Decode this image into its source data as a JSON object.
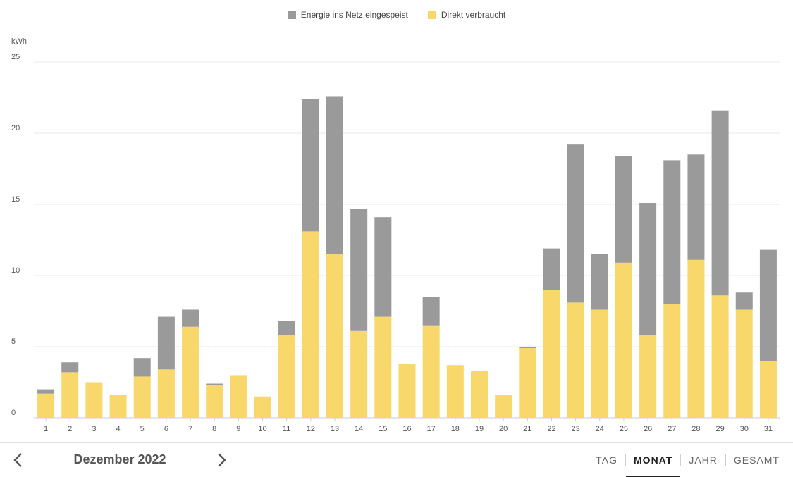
{
  "colors": {
    "fed_in": "#9a9a9a",
    "direct": "#f8d86a",
    "grid": "#e8e8e8",
    "axis_text": "#555555"
  },
  "chart_data": {
    "type": "bar",
    "stacked": true,
    "ylabel": "kWh",
    "ylim": [
      0,
      25
    ],
    "yticks": [
      0,
      5,
      10,
      15,
      20,
      25
    ],
    "grid": true,
    "legend_position": "top-center",
    "categories": [
      "1",
      "2",
      "3",
      "4",
      "5",
      "6",
      "7",
      "8",
      "9",
      "10",
      "11",
      "12",
      "13",
      "14",
      "15",
      "16",
      "17",
      "18",
      "19",
      "20",
      "21",
      "22",
      "23",
      "24",
      "25",
      "26",
      "27",
      "28",
      "29",
      "30",
      "31"
    ],
    "series": [
      {
        "name": "Direkt verbraucht",
        "color": "#f8d86a",
        "values": [
          1.7,
          3.2,
          2.5,
          1.6,
          2.9,
          3.4,
          6.4,
          2.3,
          3.0,
          1.5,
          5.8,
          13.1,
          11.5,
          6.1,
          7.1,
          3.8,
          6.5,
          3.7,
          3.3,
          1.6,
          4.9,
          9.0,
          8.1,
          7.6,
          10.9,
          5.8,
          8.0,
          11.1,
          8.6,
          7.6,
          4.0
        ]
      },
      {
        "name": "Energie ins Netz eingespeist",
        "color": "#9a9a9a",
        "values": [
          0.3,
          0.7,
          0.0,
          0.0,
          1.3,
          3.7,
          1.2,
          0.1,
          0.0,
          0.0,
          1.0,
          9.3,
          11.1,
          8.6,
          7.0,
          0.0,
          2.0,
          0.0,
          0.0,
          0.0,
          0.1,
          2.9,
          11.1,
          3.9,
          7.5,
          9.3,
          10.1,
          7.4,
          13.0,
          1.2,
          7.8
        ]
      }
    ]
  },
  "legend": [
    {
      "label": "Energie ins Netz eingespeist",
      "color": "#9a9a9a"
    },
    {
      "label": "Direkt verbraucht",
      "color": "#f8d86a"
    }
  ],
  "footer": {
    "period_label": "Dezember 2022",
    "tabs": [
      {
        "label": "TAG",
        "active": false
      },
      {
        "label": "MONAT",
        "active": true
      },
      {
        "label": "JAHR",
        "active": false
      },
      {
        "label": "GESAMT",
        "active": false
      }
    ]
  }
}
